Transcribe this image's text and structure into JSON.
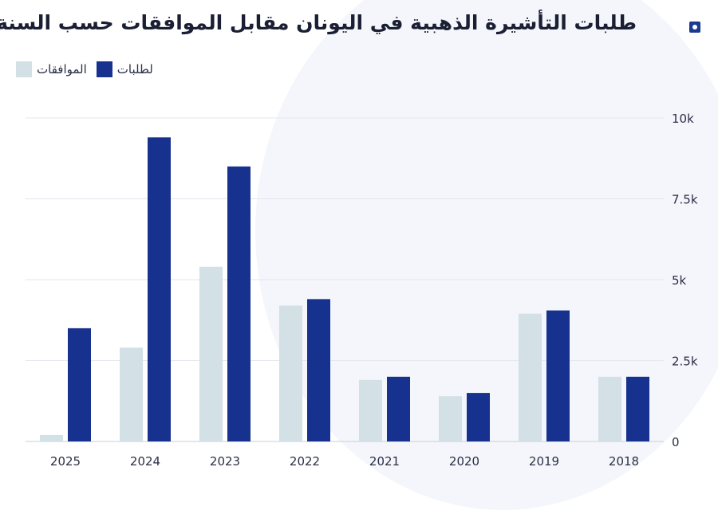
{
  "header": {
    "title": "طلبات التأشيرة الذهبية في اليونان مقابل الموافقات حسب السنة",
    "logo_icon": "square-logo-icon"
  },
  "colors": {
    "applications": "#17318f",
    "approvals": "#d3e0e6",
    "grid": "#e3e6ee",
    "text": "#2a2f45"
  },
  "legend": {
    "items": [
      {
        "label": "الموافقات",
        "color": "#d3e0e6"
      },
      {
        "label": "لطلبات",
        "color": "#17318f"
      }
    ]
  },
  "chart_data": {
    "type": "bar",
    "categories": [
      "2025",
      "2024",
      "2023",
      "2022",
      "2021",
      "2020",
      "2019",
      "2018"
    ],
    "series": [
      {
        "name": "الموافقات",
        "values": [
          200,
          2900,
          5400,
          4200,
          1900,
          1400,
          3950,
          2000
        ]
      },
      {
        "name": "لطلبات",
        "values": [
          3500,
          9400,
          8500,
          4400,
          2000,
          1500,
          4050,
          2000
        ]
      }
    ],
    "ylim": [
      0,
      10000
    ],
    "yticks": [
      {
        "value": 0,
        "label": "0"
      },
      {
        "value": 2500,
        "label": "2.5k"
      },
      {
        "value": 5000,
        "label": "5k"
      },
      {
        "value": 7500,
        "label": "7.5k"
      },
      {
        "value": 10000,
        "label": "10k"
      }
    ],
    "y_axis_position": "right",
    "legend_position": "top-left",
    "grid": true
  }
}
